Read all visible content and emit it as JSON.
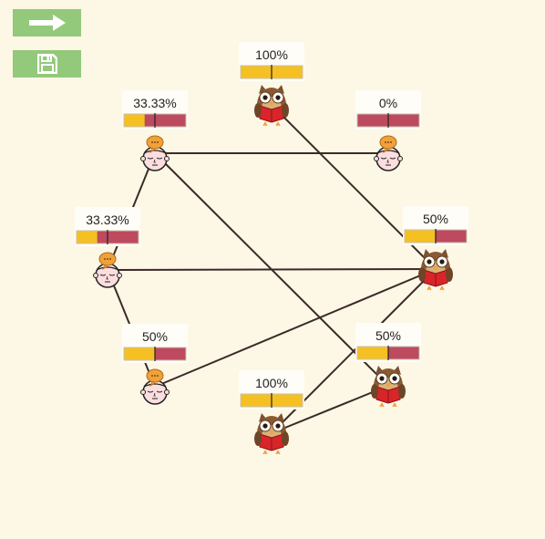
{
  "toolbar": {
    "next_icon": "right-arrow-icon",
    "save_icon": "floppy-disk-icon"
  },
  "colors": {
    "background": "#fdf7e6",
    "button": "#93c97a",
    "bar_yellow": "#f5c021",
    "bar_red": "#bd4a5e",
    "edge": "#3b2a27"
  },
  "nodes": [
    {
      "id": "owl-top",
      "kind": "owl",
      "label": "100%",
      "value": 1.0
    },
    {
      "id": "head-a",
      "kind": "head",
      "label": "33.33%",
      "value": 0.3333
    },
    {
      "id": "head-b",
      "kind": "head",
      "label": "0%",
      "value": 0.0
    },
    {
      "id": "head-c",
      "kind": "head",
      "label": "33.33%",
      "value": 0.3333
    },
    {
      "id": "owl-right",
      "kind": "owl",
      "label": "50%",
      "value": 0.5
    },
    {
      "id": "head-d",
      "kind": "head",
      "label": "50%",
      "value": 0.5
    },
    {
      "id": "owl-mid",
      "kind": "owl",
      "label": "50%",
      "value": 0.5
    },
    {
      "id": "owl-bottom",
      "kind": "owl",
      "label": "100%",
      "value": 1.0
    }
  ],
  "edges": [
    [
      "head-a",
      "head-b"
    ],
    [
      "head-a",
      "head-c"
    ],
    [
      "head-a",
      "owl-mid"
    ],
    [
      "owl-top",
      "owl-right"
    ],
    [
      "head-c",
      "owl-right"
    ],
    [
      "head-c",
      "head-d"
    ],
    [
      "head-d",
      "owl-right"
    ],
    [
      "owl-right",
      "owl-bottom"
    ],
    [
      "owl-bottom",
      "owl-mid"
    ]
  ]
}
